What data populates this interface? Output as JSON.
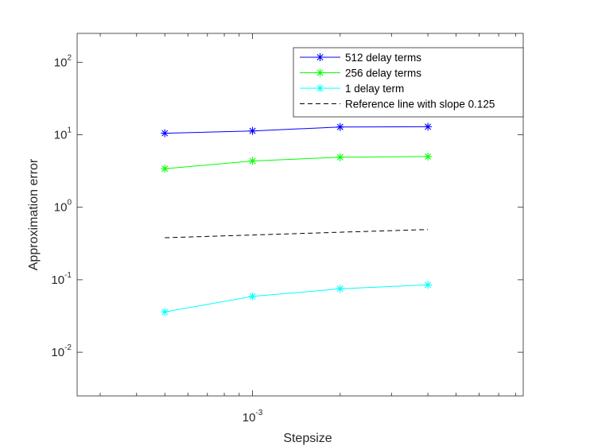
{
  "chart_data": {
    "type": "line",
    "x_scale": "log",
    "y_scale": "log",
    "xlabel": "Stepsize",
    "ylabel": "Approximation error",
    "xlim": [
      0.00025,
      0.0085
    ],
    "ylim": [
      0.0025,
      250
    ],
    "x_ticks": [
      {
        "value": 0.001,
        "base": "10",
        "exp": "-3"
      }
    ],
    "y_ticks": [
      {
        "value": 0.01,
        "base": "10",
        "exp": "-2"
      },
      {
        "value": 0.1,
        "base": "10",
        "exp": "-1"
      },
      {
        "value": 1,
        "base": "10",
        "exp": "0"
      },
      {
        "value": 10,
        "base": "10",
        "exp": "1"
      },
      {
        "value": 100,
        "base": "10",
        "exp": "2"
      }
    ],
    "x": [
      0.0005,
      0.001,
      0.002,
      0.004
    ],
    "series": [
      {
        "name": "512 delay terms",
        "values": [
          10.5,
          11.3,
          12.8,
          12.9
        ],
        "color": "#0000ff",
        "marker": "asterisk"
      },
      {
        "name": "256 delay terms",
        "values": [
          3.4,
          4.35,
          4.9,
          5.0
        ],
        "color": "#00ff00",
        "marker": "asterisk"
      },
      {
        "name": "1 delay term",
        "values": [
          0.036,
          0.059,
          0.075,
          0.085
        ],
        "color": "#00ffff",
        "marker": "asterisk"
      },
      {
        "name": "Reference line with slope 0.125",
        "values": [
          0.38,
          0.414,
          0.452,
          0.493
        ],
        "color": "#000000",
        "marker": "none",
        "dashed": true
      }
    ],
    "grid": false,
    "legend_position": "top-right"
  }
}
